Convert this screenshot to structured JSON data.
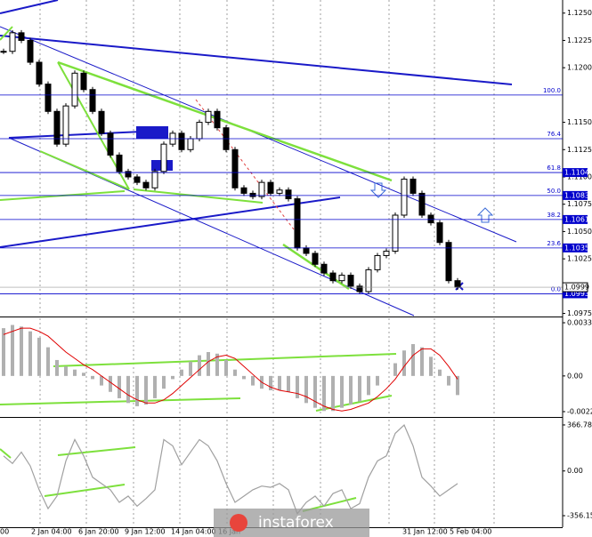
{
  "chart_data": [
    {
      "type": "candlestick",
      "ylim": [
        1.0973,
        1.1262
      ],
      "yticks": [
        {
          "value": 1.125,
          "label": "1.1250"
        },
        1.1225,
        {
          "value": 1.12,
          "label": "1.1200"
        },
        {
          "value": 1.115,
          "label": "1.1150"
        },
        1.1125,
        {
          "value": 1.11,
          "label": "1.1100"
        },
        1.1075,
        {
          "value": 1.105,
          "label": "1.1050"
        },
        1.1025,
        1.0975
      ],
      "x_labels": [
        "00",
        "2 Jan 04:00",
        "6 Jan 20:00",
        "9 Jan 12:00",
        "14 Jan 04:00",
        "16 Jan",
        "31 Jan 12:00",
        "5 Feb 04:00"
      ],
      "series": [
        {
          "color": "#000000",
          "values": [
            1.1215,
            1.1232,
            1.1225,
            1.1205,
            1.1185,
            1.116,
            1.113,
            1.1165,
            1.1195,
            1.118,
            1.116,
            1.114,
            1.112,
            1.1105,
            1.11,
            1.1095,
            1.109,
            1.1105,
            1.113,
            1.114,
            1.1125,
            1.1135,
            1.115,
            1.116,
            1.1145,
            1.1125,
            1.109,
            1.1085,
            1.1082,
            1.1095,
            1.1085,
            1.1088,
            1.108,
            1.1035,
            1.103,
            1.102,
            1.1012,
            1.1005,
            1.101,
            1.1,
            1.0995,
            1.1015,
            1.1028,
            1.1032,
            1.1065,
            1.1098,
            1.1085,
            1.1065,
            1.1058,
            1.104,
            1.1005,
            1.0999
          ]
        }
      ],
      "fib_levels": [
        {
          "ratio": {
            "value": 100,
            "label": "100.0"
          },
          "price": 1.1175,
          "boxed": false
        },
        {
          "ratio": 76.4,
          "price": 1.1135,
          "boxed": false
        },
        {
          "ratio": 61.8,
          "price": 1.1104,
          "boxed": true
        },
        {
          "ratio": {
            "value": 50,
            "label": "50.0"
          },
          "price": 1.1083,
          "boxed": true
        },
        {
          "ratio": 38.2,
          "price": 1.1061,
          "boxed": true
        },
        {
          "ratio": 23.6,
          "price": 1.1035,
          "boxed": true
        },
        {
          "ratio": {
            "value": 0,
            "label": "0.0"
          },
          "price": 1.0993,
          "boxed": true
        }
      ],
      "fib_color": "#0000cc",
      "current_price": 1.0999
    },
    {
      "type": "histogram",
      "ylim": [
        -0.00252,
        0.00362
      ],
      "yticks": [
        0.00334,
        {
          "value": 0,
          "label": "0.00"
        },
        -0.00224
      ],
      "series": [
        {
          "color": "#b0b0b0",
          "values": [
            0.003,
            0.0032,
            0.0031,
            0.0028,
            0.0024,
            0.0018,
            0.001,
            0.0006,
            0.0004,
            0.0002,
            -0.0002,
            -0.0006,
            -0.001,
            -0.0014,
            -0.0017,
            -0.0019,
            -0.0018,
            -0.0014,
            -0.0008,
            -0.0002,
            0.0004,
            0.0009,
            0.0013,
            0.0015,
            0.0014,
            0.001,
            0.0004,
            -0.0002,
            -0.0006,
            -0.0008,
            -0.0009,
            -0.0009,
            -0.001,
            -0.0014,
            -0.0017,
            -0.002,
            -0.0022,
            -0.0022,
            -0.002,
            -0.0018,
            -0.0016,
            -0.0012,
            -0.0006,
            0,
            0.0008,
            0.0016,
            0.002,
            0.0018,
            0.0012,
            0.0004,
            -0.0006,
            -0.0012
          ]
        },
        {
          "color": "#e00000",
          "values": [
            0.0026,
            0.0028,
            0.003,
            0.003,
            0.0028,
            0.0025,
            0.002,
            0.0015,
            0.0011,
            0.0007,
            0.0004,
            0,
            -0.0004,
            -0.0008,
            -0.0012,
            -0.0015,
            -0.0017,
            -0.0017,
            -0.0015,
            -0.0011,
            -0.0006,
            -0.0001,
            0.0004,
            0.0009,
            0.0012,
            0.0013,
            0.0011,
            0.0006,
            0.0001,
            -0.0004,
            -0.0007,
            -0.0009,
            -0.001,
            -0.0011,
            -0.0013,
            -0.0016,
            -0.0019,
            -0.0021,
            -0.0022,
            -0.0021,
            -0.0019,
            -0.0017,
            -0.0013,
            -0.0008,
            -0.0002,
            0.0006,
            0.0013,
            0.0017,
            0.0017,
            0.0013,
            0.0006,
            -0.0002
          ]
        }
      ]
    },
    {
      "type": "line",
      "ylim": [
        -441,
        409
      ],
      "yticks": [
        366.782,
        {
          "value": 0,
          "label": "0.00"
        },
        -356.154
      ],
      "series": [
        {
          "color": "#a0a0a0",
          "values": [
            120,
            60,
            150,
            40,
            -150,
            -300,
            -200,
            80,
            250,
            120,
            -50,
            -100,
            -150,
            -250,
            -200,
            -280,
            -220,
            -150,
            250,
            200,
            50,
            150,
            250,
            200,
            80,
            -100,
            -250,
            -200,
            -150,
            -120,
            -130,
            -100,
            -150,
            -340,
            -250,
            -200,
            -280,
            -180,
            -150,
            -300,
            -260,
            -50,
            80,
            120,
            300,
            366,
            200,
            -50,
            -120,
            -200,
            -150,
            -100
          ]
        }
      ]
    }
  ],
  "watermark": "instaforex"
}
